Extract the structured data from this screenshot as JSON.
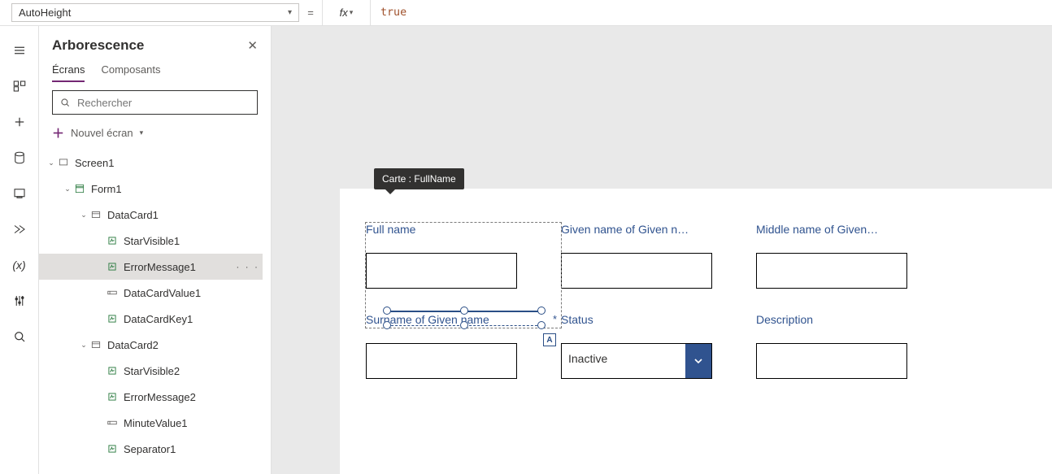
{
  "topbar": {
    "property": "AutoHeight",
    "equals": "=",
    "fx": "fx",
    "formula": "true",
    "formula_color": "#a0522d"
  },
  "panel": {
    "title": "Arborescence",
    "tabs": {
      "ecrans": "Écrans",
      "composants": "Composants"
    },
    "search_placeholder": "Rechercher",
    "new_screen": "Nouvel écran"
  },
  "tree": {
    "items": [
      {
        "id": "screen1",
        "label": "Screen1",
        "depth": 0,
        "hasChev": true,
        "icon": "screen"
      },
      {
        "id": "form1",
        "label": "Form1",
        "depth": 1,
        "hasChev": true,
        "icon": "form"
      },
      {
        "id": "datacard1",
        "label": "DataCard1",
        "depth": 2,
        "hasChev": true,
        "icon": "card"
      },
      {
        "id": "starvisible1",
        "label": "StarVisible1",
        "depth": 3,
        "hasChev": false,
        "icon": "label"
      },
      {
        "id": "errormessage1",
        "label": "ErrorMessage1",
        "depth": 3,
        "hasChev": false,
        "icon": "label",
        "selected": true
      },
      {
        "id": "datacardvalue1",
        "label": "DataCardValue1",
        "depth": 3,
        "hasChev": false,
        "icon": "input"
      },
      {
        "id": "datacardkey1",
        "label": "DataCardKey1",
        "depth": 3,
        "hasChev": false,
        "icon": "label"
      },
      {
        "id": "datacard2",
        "label": "DataCard2",
        "depth": 2,
        "hasChev": true,
        "icon": "card"
      },
      {
        "id": "starvisible2",
        "label": "StarVisible2",
        "depth": 3,
        "hasChev": false,
        "icon": "label"
      },
      {
        "id": "errormessage2",
        "label": "ErrorMessage2",
        "depth": 3,
        "hasChev": false,
        "icon": "label"
      },
      {
        "id": "minutevalue1",
        "label": "MinuteValue1",
        "depth": 3,
        "hasChev": false,
        "icon": "input"
      },
      {
        "id": "separator1",
        "label": "Separator1",
        "depth": 3,
        "hasChev": false,
        "icon": "label"
      }
    ]
  },
  "canvas": {
    "tooltip_prefix": "Carte : ",
    "tooltip_name": "FullName",
    "a_badge": "A",
    "cards": [
      {
        "label": "Full name",
        "value": "",
        "type": "text",
        "req": false
      },
      {
        "label": "Given name of Given n…",
        "value": "",
        "type": "text",
        "req": false
      },
      {
        "label": "Middle name of Given…",
        "value": "",
        "type": "text",
        "req": false
      },
      {
        "label": "Surname of Given name",
        "value": "",
        "type": "text",
        "req": false
      },
      {
        "label": "Status",
        "value": "Inactive",
        "type": "dropdown",
        "req": true
      },
      {
        "label": "Description",
        "value": "",
        "type": "text",
        "req": false
      }
    ]
  },
  "colors": {
    "accent": "#742774",
    "label": "#30538f",
    "selection": "#2a4e86",
    "canvas_bg": "#e9e9e9"
  }
}
